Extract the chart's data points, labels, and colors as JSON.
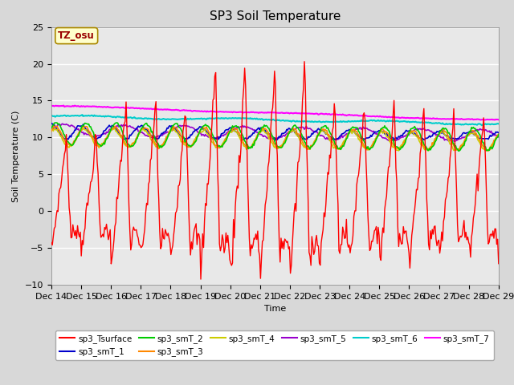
{
  "title": "SP3 Soil Temperature",
  "ylabel": "Soil Temperature (C)",
  "xlabel": "Time",
  "tz_label": "TZ_osu",
  "ylim": [
    -10,
    25
  ],
  "fig_bg_color": "#d8d8d8",
  "plot_bg_color": "#e8e8e8",
  "legend_entries": [
    {
      "label": "sp3_Tsurface",
      "color": "#ff0000"
    },
    {
      "label": "sp3_smT_1",
      "color": "#0000cc"
    },
    {
      "label": "sp3_smT_2",
      "color": "#00cc00"
    },
    {
      "label": "sp3_smT_3",
      "color": "#ff8800"
    },
    {
      "label": "sp3_smT_4",
      "color": "#cccc00"
    },
    {
      "label": "sp3_smT_5",
      "color": "#9900cc"
    },
    {
      "label": "sp3_smT_6",
      "color": "#00cccc"
    },
    {
      "label": "sp3_smT_7",
      "color": "#ff00ff"
    }
  ],
  "x_tick_labels": [
    "Dec 14",
    "Dec 15",
    "Dec 16",
    "Dec 17",
    "Dec 18",
    "Dec 19",
    "Dec 20",
    "Dec 21",
    "Dec 22",
    "Dec 23",
    "Dec 24",
    "Dec 25",
    "Dec 26",
    "Dec 27",
    "Dec 28",
    "Dec 29"
  ],
  "n_points": 480,
  "figsize": [
    6.4,
    4.8
  ],
  "dpi": 100
}
